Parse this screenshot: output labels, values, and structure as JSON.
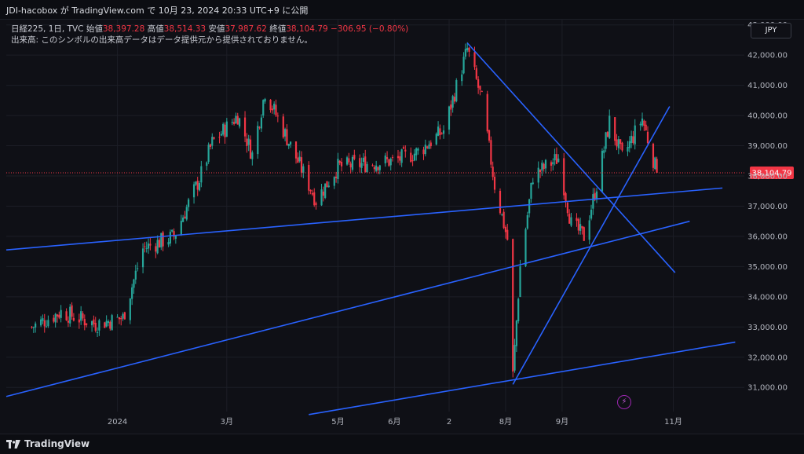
{
  "header": {
    "publish_line": "JDI-hacobox が TradingView.com で 10月 23, 2024 20:33 UTC+9 に公開"
  },
  "legend": {
    "symbol": "日経225, 1日, TVC",
    "open_label": "始値",
    "open": "38,397.28",
    "high_label": "高値",
    "high": "38,514.33",
    "low_label": "安値",
    "low": "37,987.62",
    "close_label": "終値",
    "close": "38,104.79",
    "change": "−306.95 (−0.80%)",
    "volume_note": "出来高: このシンボルの出来高データはデータ提供元から提供されておりません。"
  },
  "currency_button": "JPY",
  "footer": {
    "brand": "TradingView"
  },
  "colors": {
    "background": "#0f1016",
    "up": "#26a69a",
    "down": "#f23645",
    "trendline": "#2962ff",
    "price_line": "#f23645"
  },
  "icons": {
    "alert": "lightning-icon"
  },
  "chart_data": {
    "type": "candlestick",
    "y_axis": {
      "range": [
        30200,
        43200
      ],
      "ticks": [
        "31,000.00",
        "32,000.00",
        "33,000.00",
        "34,000.00",
        "35,000.00",
        "36,000.00",
        "37,000.00",
        "38,000.00",
        "39,000.00",
        "40,000.00",
        "41,000.00",
        "42,000.00",
        "43,000.00"
      ]
    },
    "x_axis": {
      "ticks": [
        {
          "label": "2024",
          "date": "2024-01-01"
        },
        {
          "label": "3月",
          "date": "2024-03-01"
        },
        {
          "label": "5月",
          "date": "2024-05-01"
        },
        {
          "label": "6月",
          "date": "2024-06-01"
        },
        {
          "label": "2",
          "date": "2024-07-01"
        },
        {
          "label": "8月",
          "date": "2024-08-01"
        },
        {
          "label": "9月",
          "date": "2024-09-01"
        },
        {
          "label": "11月",
          "date": "2024-11-01"
        }
      ]
    },
    "current_price": {
      "value": 38104.79,
      "label": "38,104.79"
    },
    "anchors": [
      [
        "2023-11-15",
        33000
      ],
      [
        "2023-12-01",
        33500
      ],
      [
        "2023-12-20",
        33100
      ],
      [
        "2024-01-04",
        33300
      ],
      [
        "2024-01-15",
        35600
      ],
      [
        "2024-02-01",
        36000
      ],
      [
        "2024-02-15",
        37900
      ],
      [
        "2024-02-22",
        39100
      ],
      [
        "2024-03-07",
        40000
      ],
      [
        "2024-03-15",
        38700
      ],
      [
        "2024-03-22",
        40800
      ],
      [
        "2024-04-05",
        39000
      ],
      [
        "2024-04-19",
        37200
      ],
      [
        "2024-05-01",
        38300
      ],
      [
        "2024-05-15",
        38400
      ],
      [
        "2024-06-01",
        38500
      ],
      [
        "2024-06-14",
        38800
      ],
      [
        "2024-06-28",
        39500
      ],
      [
        "2024-07-11",
        42200
      ],
      [
        "2024-07-19",
        40500
      ],
      [
        "2024-07-26",
        37700
      ],
      [
        "2024-08-02",
        35900
      ],
      [
        "2024-08-05",
        31400
      ],
      [
        "2024-08-09",
        35000
      ],
      [
        "2024-08-16",
        38000
      ],
      [
        "2024-08-30",
        38600
      ],
      [
        "2024-09-06",
        36400
      ],
      [
        "2024-09-13",
        36000
      ],
      [
        "2024-09-20",
        37700
      ],
      [
        "2024-09-27",
        39800
      ],
      [
        "2024-10-04",
        38600
      ],
      [
        "2024-10-15",
        39900
      ],
      [
        "2024-10-23",
        38104.79
      ]
    ],
    "trendlines": [
      {
        "name": "long-support",
        "from": [
          "2023-11-01",
          35550
        ],
        "to": [
          "2024-11-28",
          37600
        ]
      },
      {
        "name": "channel-mid",
        "from": [
          "2023-11-01",
          30700
        ],
        "to": [
          "2024-11-10",
          36500
        ]
      },
      {
        "name": "channel-low",
        "from": [
          "2024-04-15",
          30100
        ],
        "to": [
          "2024-12-05",
          32500
        ]
      },
      {
        "name": "peak-down",
        "from": [
          "2024-07-11",
          42400
        ],
        "to": [
          "2024-11-02",
          34800
        ]
      },
      {
        "name": "rally-up",
        "from": [
          "2024-08-05",
          31100
        ],
        "to": [
          "2024-10-30",
          40300
        ]
      }
    ]
  }
}
